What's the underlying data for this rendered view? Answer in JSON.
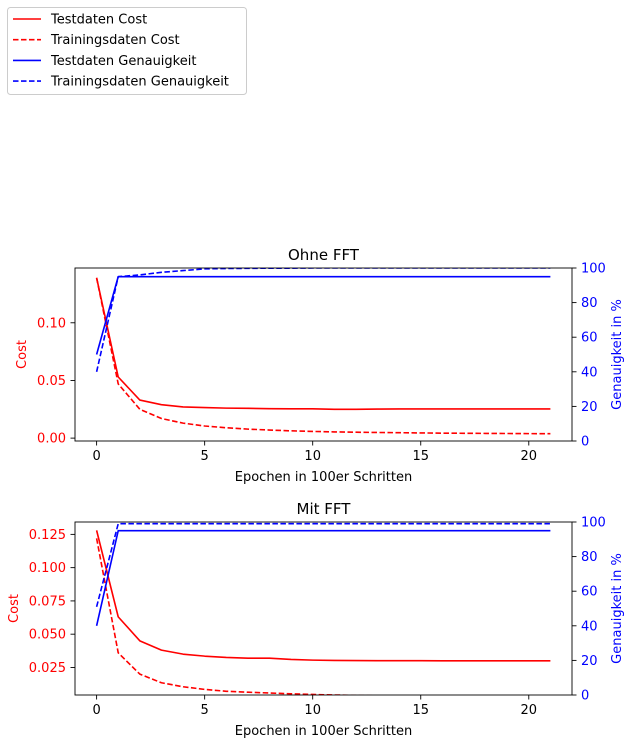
{
  "legend": [
    {
      "label": "Testdaten Cost",
      "color": "#ff0000",
      "dash": false
    },
    {
      "label": "Trainingsdaten Cost",
      "color": "#ff0000",
      "dash": true
    },
    {
      "label": "Testdaten Genauigkeit",
      "color": "#0000ff",
      "dash": false
    },
    {
      "label": "Trainingsdaten Genauigkeit",
      "color": "#0000ff",
      "dash": true
    }
  ],
  "colors": {
    "cost": "#ff0000",
    "accuracy": "#0000ff"
  },
  "chart_data": [
    {
      "type": "line",
      "title": "Ohne FFT",
      "xlabel": "Epochen in 100er Schritten",
      "ylabel": "Cost",
      "y2label": "Genauigkeit in %",
      "xlim": [
        -1,
        22
      ],
      "ylim": [
        -0.0025,
        0.1475
      ],
      "y2lim": [
        0,
        100
      ],
      "xticks": [
        0,
        5,
        10,
        15,
        20
      ],
      "yticks": [
        0.0,
        0.05,
        0.1
      ],
      "ytick_labels": [
        "0.00",
        "0.05",
        "0.10"
      ],
      "y2ticks": [
        0,
        20,
        40,
        60,
        80,
        100
      ],
      "x": [
        0,
        1,
        2,
        3,
        4,
        5,
        6,
        7,
        8,
        9,
        10,
        11,
        12,
        13,
        14,
        15,
        16,
        17,
        18,
        19,
        20,
        21
      ],
      "series": [
        {
          "name": "Testdaten Cost",
          "axis": "left",
          "dash": false,
          "values": [
            0.139,
            0.053,
            0.033,
            0.029,
            0.027,
            0.0265,
            0.026,
            0.0258,
            0.0255,
            0.0254,
            0.0254,
            0.025,
            0.025,
            0.0252,
            0.0253,
            0.0253,
            0.0253,
            0.0253,
            0.0253,
            0.0253,
            0.0253,
            0.0253
          ]
        },
        {
          "name": "Trainingsdaten Cost",
          "axis": "left",
          "dash": false,
          "dash_style": true,
          "values": [
            0.139,
            0.047,
            0.025,
            0.017,
            0.013,
            0.0105,
            0.009,
            0.0078,
            0.007,
            0.0063,
            0.0058,
            0.0054,
            0.0051,
            0.0049,
            0.0047,
            0.0045,
            0.0043,
            0.0042,
            0.0041,
            0.004,
            0.0039,
            0.0038
          ]
        },
        {
          "name": "Testdaten Genauigkeit",
          "axis": "right",
          "dash": false,
          "values": [
            50,
            95,
            95,
            95,
            95,
            95,
            95,
            95,
            95,
            95,
            95,
            95,
            95,
            95,
            95,
            95,
            95,
            95,
            95,
            95,
            95,
            95
          ]
        },
        {
          "name": "Trainingsdaten Genauigkeit",
          "axis": "right",
          "dash_style": true,
          "values": [
            40,
            95,
            96,
            97.5,
            98.5,
            99.5,
            99.7,
            99.8,
            99.9,
            99.9,
            100,
            100,
            100,
            100,
            100,
            100,
            100,
            100,
            100,
            100,
            100,
            100
          ]
        }
      ]
    },
    {
      "type": "line",
      "title": "Mit FFT",
      "xlabel": "Epochen in 100er Schritten",
      "ylabel": "Cost",
      "y2label": "Genauigkeit in %",
      "xlim": [
        -1,
        22
      ],
      "ylim": [
        0.0043,
        0.1343
      ],
      "y2lim": [
        0,
        100
      ],
      "xticks": [
        0,
        5,
        10,
        15,
        20
      ],
      "yticks": [
        0.025,
        0.05,
        0.075,
        0.1,
        0.125
      ],
      "ytick_labels": [
        "0.025",
        "0.050",
        "0.075",
        "0.100",
        "0.125"
      ],
      "y2ticks": [
        0,
        20,
        40,
        60,
        80,
        100
      ],
      "x": [
        0,
        1,
        2,
        3,
        4,
        5,
        6,
        7,
        8,
        9,
        10,
        11,
        12,
        13,
        14,
        15,
        16,
        17,
        18,
        19,
        20,
        21
      ],
      "series": [
        {
          "name": "Testdaten Cost",
          "axis": "left",
          "values": [
            0.128,
            0.063,
            0.045,
            0.038,
            0.035,
            0.0335,
            0.0325,
            0.032,
            0.032,
            0.031,
            0.0305,
            0.0303,
            0.0302,
            0.0301,
            0.0301,
            0.0301,
            0.03,
            0.03,
            0.03,
            0.03,
            0.03,
            0.03
          ]
        },
        {
          "name": "Trainingsdaten Cost",
          "axis": "left",
          "dash_style": true,
          "values": [
            0.122,
            0.036,
            0.02,
            0.0135,
            0.0105,
            0.0085,
            0.0071,
            0.0064,
            0.0058,
            0.0052,
            0.0047,
            0.0043,
            0.004,
            0.0037,
            0.0034,
            0.0032,
            0.003,
            0.0028,
            0.0027,
            0.0026,
            0.0025,
            0.0024
          ]
        },
        {
          "name": "Testdaten Genauigkeit",
          "axis": "right",
          "values": [
            40,
            95,
            95,
            95,
            95,
            95,
            95,
            95,
            95,
            95,
            95,
            95,
            95,
            95,
            95,
            95,
            95,
            95,
            95,
            95,
            95,
            95
          ]
        },
        {
          "name": "Trainingsdaten Genauigkeit",
          "axis": "right",
          "dash_style": true,
          "values": [
            51,
            99,
            99,
            99,
            99,
            99,
            99,
            99,
            99,
            99,
            99,
            99,
            99,
            99,
            99,
            99,
            99,
            99,
            99,
            99,
            99,
            99
          ]
        }
      ]
    }
  ]
}
